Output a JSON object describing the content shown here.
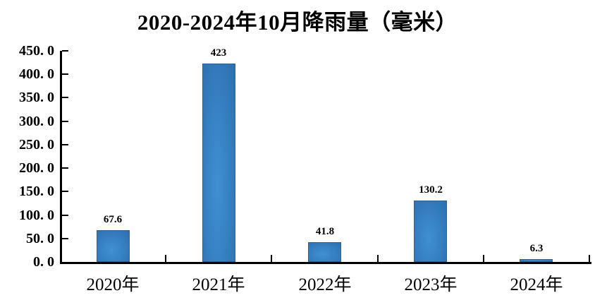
{
  "title": "2020-2024年10月降雨量（毫米）",
  "colors": {
    "background": "#ffffff",
    "axis": "#000000",
    "text": "#000000",
    "bar_center": "#4090d2",
    "bar_edge": "#2d6fae",
    "bar_border": "#2b6399"
  },
  "chart_data": {
    "type": "bar",
    "title": "2020-2024年10月降雨量（毫米）",
    "categories": [
      "2020年",
      "2021年",
      "2022年",
      "2023年",
      "2024年"
    ],
    "values": [
      67.6,
      423,
      41.8,
      130.2,
      6.3
    ],
    "data_labels": [
      "67.6",
      "423",
      "41.8",
      "130.2",
      "6.3"
    ],
    "xlabel": "",
    "ylabel": "",
    "ylim": [
      0,
      450
    ],
    "y_tick_interval": 50,
    "y_tick_labels": [
      "0. 0",
      "50. 0",
      "100. 0",
      "150. 0",
      "200. 0",
      "250. 0",
      "300. 0",
      "350. 0",
      "400. 0",
      "450. 0"
    ],
    "grid": false,
    "legend_position": "none",
    "bar_label_position": "above"
  }
}
